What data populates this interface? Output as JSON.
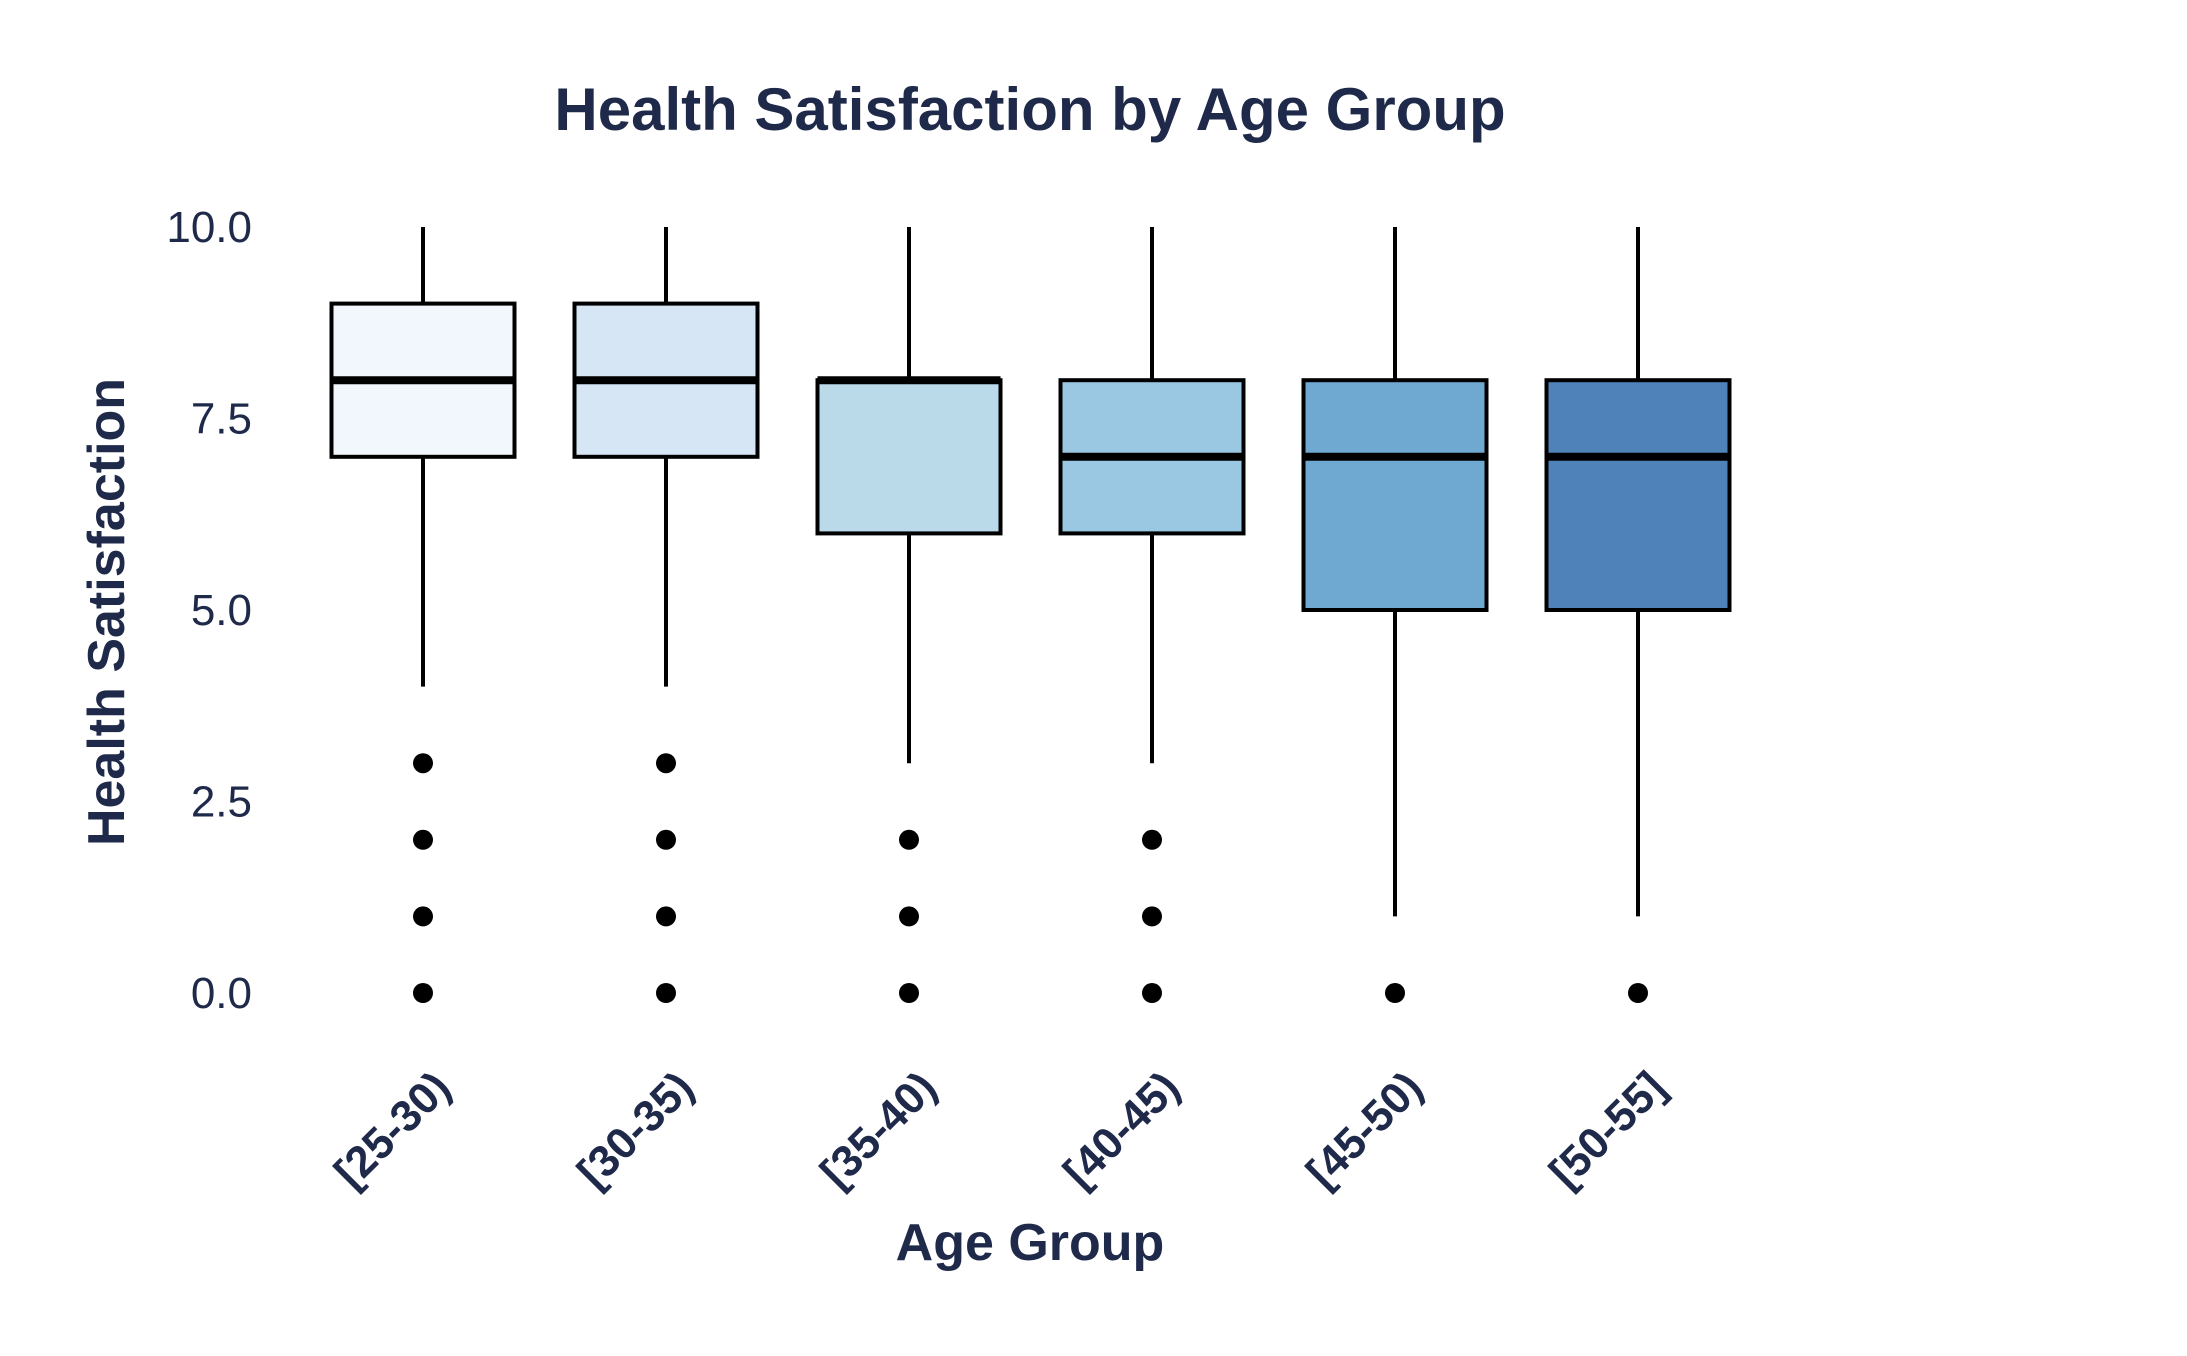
{
  "chart_data": {
    "type": "box",
    "title": "Health Satisfaction by Age Group",
    "xlabel": "Age Group",
    "ylabel": "Health Satisfaction",
    "ylim": [
      0,
      10
    ],
    "y_ticks": [
      "0.0",
      "2.5",
      "5.0",
      "7.5",
      "10.0"
    ],
    "y_tick_values": [
      0,
      2.5,
      5,
      7.5,
      10
    ],
    "grid": false,
    "legend": "none",
    "categories": [
      "[25-30)",
      "[30-35)",
      "[35-40)",
      "[40-45)",
      "[45-50)",
      "[50-55]"
    ],
    "boxes": [
      {
        "category": "[25-30)",
        "whisker_low": 4,
        "q1": 7,
        "median": 8,
        "q3": 9,
        "whisker_high": 10,
        "outliers": [
          3,
          2,
          1,
          0
        ],
        "fill": "#f2f7fd"
      },
      {
        "category": "[30-35)",
        "whisker_low": 4,
        "q1": 7,
        "median": 8,
        "q3": 9,
        "whisker_high": 10,
        "outliers": [
          3,
          2,
          1,
          0
        ],
        "fill": "#d6e6f4"
      },
      {
        "category": "[35-40)",
        "whisker_low": 3,
        "q1": 6,
        "median": 8,
        "q3": 8,
        "whisker_high": 10,
        "outliers": [
          2,
          1,
          0
        ],
        "fill": "#badaea"
      },
      {
        "category": "[40-45)",
        "whisker_low": 3,
        "q1": 6,
        "median": 7,
        "q3": 8,
        "whisker_high": 10,
        "outliers": [
          2,
          1,
          0
        ],
        "fill": "#9ac8e2"
      },
      {
        "category": "[45-50)",
        "whisker_low": 1,
        "q1": 5,
        "median": 7,
        "q3": 8,
        "whisker_high": 10,
        "outliers": [
          0
        ],
        "fill": "#6fa8d1"
      },
      {
        "category": "[50-55]",
        "whisker_low": 1,
        "q1": 5,
        "median": 7,
        "q3": 8,
        "whisker_high": 10,
        "outliers": [
          0
        ],
        "fill": "#5082ba"
      }
    ],
    "colors": {
      "text": "#1f2a4a",
      "stroke": "#000000",
      "background": "#ffffff"
    }
  }
}
